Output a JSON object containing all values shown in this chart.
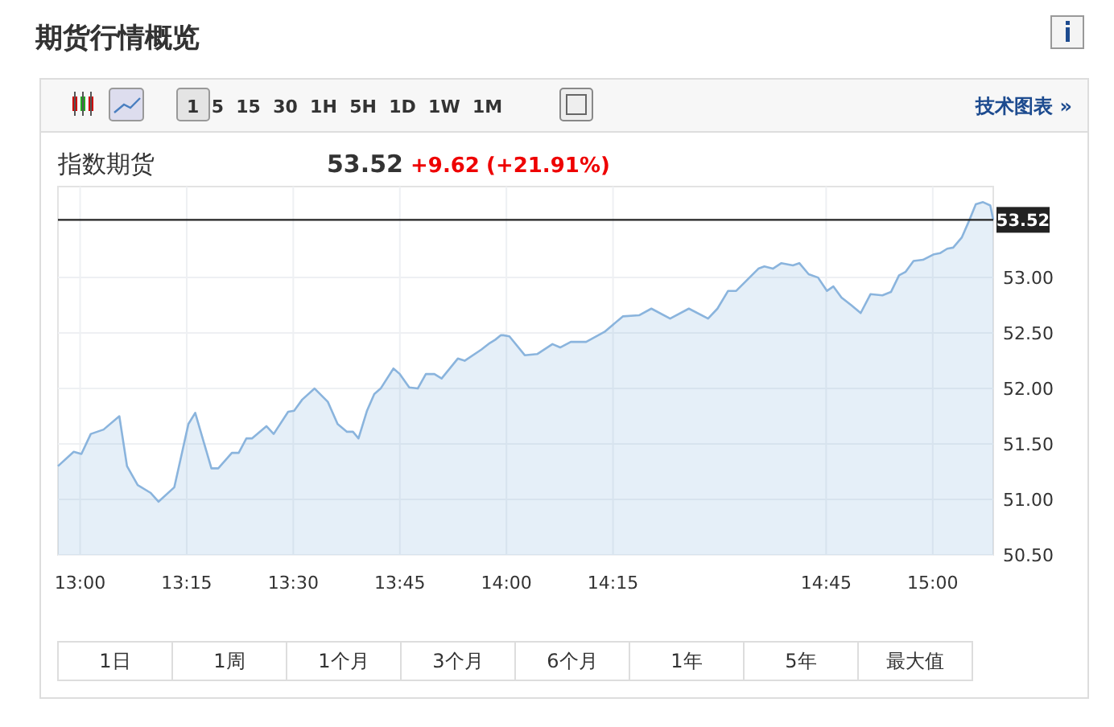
{
  "chart_data": {
    "type": "area",
    "title": "期货行情概览",
    "subtitle": "指数期货",
    "annotations": [
      "53.52",
      "+9.62",
      "(+21.91%)",
      "1  5  15  30  1H  5H  1D  1W  1M",
      "技术图表 »",
      "1日",
      "1周",
      "1个月",
      "3个月",
      "6个月",
      "1年",
      "5年",
      "最大值"
    ],
    "x": [
      12.948,
      12.985,
      13.003,
      13.025,
      13.055,
      13.092,
      13.11,
      13.135,
      13.165,
      13.184,
      13.221,
      13.254,
      13.27,
      13.308,
      13.324,
      13.356,
      13.372,
      13.39,
      13.403,
      13.437,
      13.454,
      13.488,
      13.502,
      13.521,
      13.55,
      13.581,
      13.604,
      13.626,
      13.64,
      13.653,
      13.673,
      13.69,
      13.705,
      13.735,
      13.75,
      13.772,
      13.792,
      13.811,
      13.831,
      13.848,
      13.886,
      13.902,
      13.941,
      13.961,
      13.974,
      13.987,
      13.993,
      14.007,
      14.043,
      14.072,
      14.108,
      14.126,
      14.151,
      14.187,
      14.23,
      14.273,
      14.311,
      14.34,
      14.384,
      14.428,
      14.473,
      14.495,
      14.52,
      14.539,
      14.591,
      14.605,
      14.625,
      14.645,
      14.672,
      14.687,
      14.709,
      14.731,
      14.752,
      14.767,
      14.786,
      14.809,
      14.831,
      14.854,
      14.882,
      14.902,
      14.921,
      14.936,
      14.955,
      14.977,
      15.003,
      15.017,
      15.034,
      15.048,
      15.068,
      15.084,
      15.101,
      15.118,
      15.135,
      15.142
    ],
    "series": [
      {
        "color": "#8ab4dd",
        "values": [
          51.3,
          51.43,
          51.41,
          51.59,
          51.63,
          51.75,
          51.3,
          51.13,
          51.06,
          50.98,
          51.11,
          51.68,
          51.78,
          51.28,
          51.28,
          51.42,
          51.42,
          51.55,
          51.55,
          51.66,
          51.59,
          51.79,
          51.8,
          51.9,
          52.0,
          51.88,
          51.68,
          51.61,
          51.61,
          51.55,
          51.8,
          51.95,
          52.0,
          52.18,
          52.13,
          52.01,
          52.0,
          52.13,
          52.13,
          52.09,
          52.27,
          52.25,
          52.35,
          52.41,
          52.44,
          52.48,
          52.48,
          52.47,
          52.3,
          52.31,
          52.4,
          52.37,
          52.42,
          52.42,
          52.51,
          52.65,
          52.66,
          52.72,
          52.63,
          52.72,
          52.63,
          52.72,
          52.88,
          52.88,
          53.08,
          53.1,
          53.08,
          53.13,
          53.11,
          53.13,
          53.03,
          53.0,
          52.88,
          52.92,
          52.82,
          52.75,
          52.68,
          52.85,
          52.84,
          52.87,
          53.02,
          53.05,
          53.15,
          53.16,
          53.21,
          53.22,
          53.26,
          53.27,
          53.36,
          53.5,
          53.66,
          53.68,
          53.65,
          53.52
        ]
      }
    ],
    "xlim": [
      12.948,
      15.142
    ],
    "ylim": [
      50.5,
      53.82
    ],
    "xticks": [
      {
        "value": 13,
        "label": "13:00"
      },
      {
        "value": 13.25,
        "label": "13:15"
      },
      {
        "value": 13.5,
        "label": "13:30"
      },
      {
        "value": 13.75,
        "label": "13:45"
      },
      {
        "value": 14,
        "label": "14:00"
      },
      {
        "value": 14.25,
        "label": "14:15"
      },
      {
        "value": 14.75,
        "label": "14:45"
      },
      {
        "value": 15,
        "label": "15:00"
      }
    ],
    "yticks": [
      {
        "value": 50.5,
        "label": "50.50"
      },
      {
        "value": 51,
        "label": "51.00"
      },
      {
        "value": 51.5,
        "label": "51.50"
      },
      {
        "value": 52,
        "label": "52.00"
      },
      {
        "value": 52.5,
        "label": "52.50"
      },
      {
        "value": 53,
        "label": "53.00"
      }
    ],
    "ref_lines": [
      {
        "axis": "y",
        "value": 53.52,
        "label": "53.52",
        "color": "#222222"
      }
    ],
    "grid": true,
    "marker": "none",
    "line_style": "solid"
  }
}
